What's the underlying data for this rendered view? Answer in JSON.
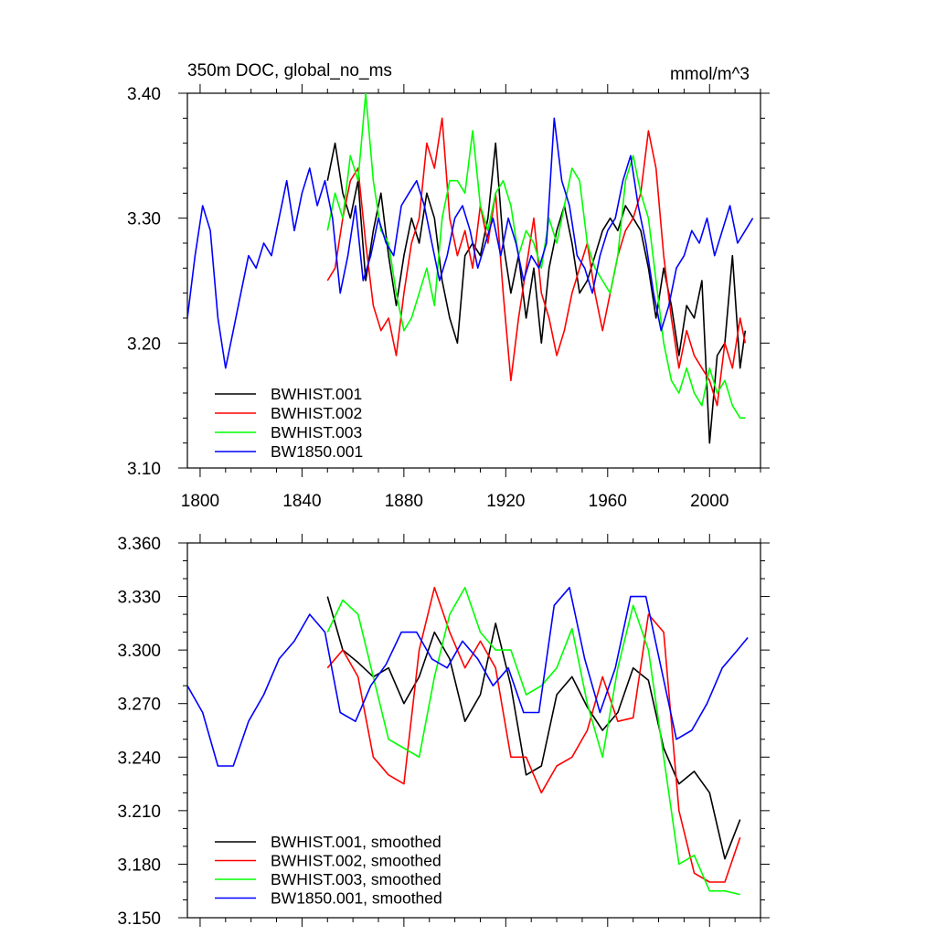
{
  "chart_data": [
    {
      "type": "line",
      "title": "350m DOC, global_no_ms",
      "units": "mmol/m^3",
      "xlim": [
        1795,
        2020
      ],
      "ylim": [
        3.1,
        3.4
      ],
      "xticks": [
        1800,
        1840,
        1880,
        1920,
        1960,
        2000
      ],
      "xtick_labels": [
        "1800",
        "1840",
        "1880",
        "1920",
        "1960",
        "2000"
      ],
      "yticks": [
        3.1,
        3.2,
        3.3,
        3.4
      ],
      "ytick_labels": [
        "3.10",
        "3.20",
        "3.30",
        "3.40"
      ],
      "legend_position": "bottom-left",
      "series": [
        {
          "name": "BWHIST.001",
          "color": "#000000",
          "x": [
            1850,
            1853,
            1856,
            1859,
            1862,
            1865,
            1868,
            1871,
            1874,
            1877,
            1880,
            1883,
            1886,
            1889,
            1892,
            1895,
            1898,
            1901,
            1904,
            1907,
            1910,
            1913,
            1916,
            1919,
            1922,
            1925,
            1928,
            1931,
            1934,
            1937,
            1940,
            1943,
            1946,
            1949,
            1952,
            1955,
            1958,
            1961,
            1964,
            1967,
            1970,
            1973,
            1976,
            1979,
            1982,
            1985,
            1988,
            1991,
            1994,
            1997,
            2000,
            2003,
            2006,
            2009,
            2012,
            2014
          ],
          "values": [
            3.33,
            3.36,
            3.32,
            3.3,
            3.33,
            3.25,
            3.29,
            3.32,
            3.27,
            3.23,
            3.27,
            3.3,
            3.28,
            3.32,
            3.3,
            3.25,
            3.22,
            3.2,
            3.27,
            3.28,
            3.27,
            3.3,
            3.36,
            3.28,
            3.24,
            3.27,
            3.22,
            3.26,
            3.2,
            3.26,
            3.29,
            3.31,
            3.28,
            3.24,
            3.25,
            3.27,
            3.29,
            3.3,
            3.29,
            3.31,
            3.3,
            3.29,
            3.26,
            3.22,
            3.26,
            3.23,
            3.19,
            3.23,
            3.22,
            3.25,
            3.12,
            3.19,
            3.2,
            3.27,
            3.18,
            3.21
          ]
        },
        {
          "name": "BWHIST.002",
          "color": "#ff0000",
          "x": [
            1850,
            1853,
            1856,
            1859,
            1862,
            1865,
            1868,
            1871,
            1874,
            1877,
            1880,
            1883,
            1886,
            1889,
            1892,
            1895,
            1898,
            1901,
            1904,
            1907,
            1910,
            1913,
            1916,
            1919,
            1922,
            1925,
            1928,
            1931,
            1934,
            1937,
            1940,
            1943,
            1946,
            1949,
            1952,
            1955,
            1958,
            1961,
            1964,
            1967,
            1970,
            1973,
            1976,
            1979,
            1982,
            1985,
            1988,
            1991,
            1994,
            1997,
            2000,
            2003,
            2006,
            2009,
            2012,
            2014
          ],
          "values": [
            3.25,
            3.26,
            3.3,
            3.33,
            3.34,
            3.28,
            3.23,
            3.21,
            3.22,
            3.19,
            3.24,
            3.28,
            3.3,
            3.36,
            3.34,
            3.38,
            3.3,
            3.27,
            3.29,
            3.26,
            3.31,
            3.28,
            3.32,
            3.24,
            3.17,
            3.22,
            3.26,
            3.3,
            3.24,
            3.22,
            3.19,
            3.21,
            3.24,
            3.26,
            3.28,
            3.24,
            3.21,
            3.24,
            3.27,
            3.29,
            3.3,
            3.32,
            3.37,
            3.34,
            3.27,
            3.22,
            3.18,
            3.21,
            3.19,
            3.18,
            3.17,
            3.15,
            3.2,
            3.18,
            3.22,
            3.2
          ]
        },
        {
          "name": "BWHIST.003",
          "color": "#00ff00",
          "x": [
            1850,
            1853,
            1856,
            1859,
            1862,
            1865,
            1868,
            1871,
            1874,
            1877,
            1880,
            1883,
            1886,
            1889,
            1892,
            1895,
            1898,
            1901,
            1904,
            1907,
            1910,
            1913,
            1916,
            1919,
            1922,
            1925,
            1928,
            1931,
            1934,
            1937,
            1940,
            1943,
            1946,
            1949,
            1952,
            1955,
            1958,
            1961,
            1964,
            1967,
            1970,
            1973,
            1976,
            1979,
            1982,
            1985,
            1988,
            1991,
            1994,
            1997,
            2000,
            2003,
            2006,
            2009,
            2012,
            2014
          ],
          "values": [
            3.29,
            3.32,
            3.3,
            3.35,
            3.33,
            3.4,
            3.33,
            3.29,
            3.28,
            3.24,
            3.21,
            3.22,
            3.24,
            3.26,
            3.23,
            3.3,
            3.33,
            3.33,
            3.32,
            3.37,
            3.31,
            3.29,
            3.32,
            3.33,
            3.31,
            3.27,
            3.29,
            3.28,
            3.26,
            3.3,
            3.28,
            3.31,
            3.34,
            3.33,
            3.28,
            3.26,
            3.25,
            3.24,
            3.27,
            3.33,
            3.35,
            3.32,
            3.3,
            3.25,
            3.2,
            3.17,
            3.16,
            3.18,
            3.16,
            3.15,
            3.18,
            3.16,
            3.17,
            3.15,
            3.14,
            3.14
          ]
        },
        {
          "name": "BW1850.001",
          "color": "#0000ff",
          "x": [
            1795,
            1798,
            1801,
            1804,
            1807,
            1810,
            1813,
            1816,
            1819,
            1822,
            1825,
            1828,
            1831,
            1834,
            1837,
            1840,
            1843,
            1846,
            1849,
            1852,
            1855,
            1858,
            1861,
            1864,
            1867,
            1870,
            1873,
            1876,
            1879,
            1882,
            1885,
            1888,
            1891,
            1894,
            1897,
            1900,
            1903,
            1906,
            1909,
            1912,
            1915,
            1918,
            1921,
            1924,
            1927,
            1930,
            1933,
            1936,
            1939,
            1942,
            1945,
            1948,
            1951,
            1954,
            1957,
            1960,
            1963,
            1966,
            1969,
            1972,
            1975,
            1978,
            1981,
            1984,
            1987,
            1990,
            1993,
            1996,
            1999,
            2002,
            2005,
            2008,
            2011,
            2014,
            2017
          ],
          "values": [
            3.22,
            3.27,
            3.31,
            3.29,
            3.22,
            3.18,
            3.21,
            3.24,
            3.27,
            3.26,
            3.28,
            3.27,
            3.3,
            3.33,
            3.29,
            3.32,
            3.34,
            3.31,
            3.33,
            3.3,
            3.24,
            3.27,
            3.31,
            3.25,
            3.27,
            3.3,
            3.28,
            3.27,
            3.31,
            3.32,
            3.33,
            3.31,
            3.28,
            3.25,
            3.27,
            3.3,
            3.31,
            3.29,
            3.26,
            3.28,
            3.3,
            3.27,
            3.3,
            3.28,
            3.25,
            3.27,
            3.26,
            3.28,
            3.38,
            3.33,
            3.31,
            3.27,
            3.26,
            3.24,
            3.27,
            3.29,
            3.3,
            3.33,
            3.35,
            3.31,
            3.28,
            3.24,
            3.21,
            3.23,
            3.26,
            3.27,
            3.29,
            3.28,
            3.3,
            3.27,
            3.29,
            3.31,
            3.28,
            3.29,
            3.3
          ]
        }
      ]
    },
    {
      "type": "line",
      "xlim": [
        1795,
        2020
      ],
      "ylim": [
        3.15,
        3.36
      ],
      "xticks": [
        1800,
        1840,
        1880,
        1920,
        1960,
        2000
      ],
      "yticks": [
        3.15,
        3.18,
        3.21,
        3.24,
        3.27,
        3.3,
        3.33,
        3.36
      ],
      "ytick_labels": [
        "3.150",
        "3.180",
        "3.210",
        "3.240",
        "3.270",
        "3.300",
        "3.330",
        "3.360"
      ],
      "legend_position": "bottom-left",
      "series": [
        {
          "name": "BWHIST.001, smoothed",
          "color": "#000000",
          "x": [
            1850,
            1856,
            1862,
            1868,
            1874,
            1880,
            1886,
            1892,
            1898,
            1904,
            1910,
            1916,
            1922,
            1928,
            1934,
            1940,
            1946,
            1952,
            1958,
            1964,
            1970,
            1976,
            1982,
            1988,
            1994,
            2000,
            2006,
            2012
          ],
          "values": [
            3.33,
            3.3,
            3.293,
            3.285,
            3.29,
            3.27,
            3.285,
            3.31,
            3.295,
            3.26,
            3.275,
            3.315,
            3.28,
            3.23,
            3.235,
            3.275,
            3.285,
            3.268,
            3.255,
            3.265,
            3.29,
            3.283,
            3.245,
            3.225,
            3.232,
            3.22,
            3.183,
            3.205
          ]
        },
        {
          "name": "BWHIST.002, smoothed",
          "color": "#ff0000",
          "x": [
            1850,
            1856,
            1862,
            1868,
            1874,
            1880,
            1886,
            1892,
            1898,
            1904,
            1910,
            1916,
            1922,
            1928,
            1934,
            1940,
            1946,
            1952,
            1958,
            1964,
            1970,
            1976,
            1982,
            1988,
            1994,
            2000,
            2006,
            2012
          ],
          "values": [
            3.29,
            3.3,
            3.285,
            3.24,
            3.23,
            3.225,
            3.3,
            3.335,
            3.31,
            3.29,
            3.305,
            3.29,
            3.24,
            3.24,
            3.22,
            3.235,
            3.24,
            3.255,
            3.285,
            3.26,
            3.262,
            3.32,
            3.31,
            3.21,
            3.175,
            3.17,
            3.17,
            3.195
          ]
        },
        {
          "name": "BWHIST.003, smoothed",
          "color": "#00ff00",
          "x": [
            1850,
            1856,
            1862,
            1868,
            1874,
            1880,
            1886,
            1892,
            1898,
            1904,
            1910,
            1916,
            1922,
            1928,
            1934,
            1940,
            1946,
            1952,
            1958,
            1964,
            1970,
            1976,
            1982,
            1988,
            1994,
            2000,
            2006,
            2012
          ],
          "values": [
            3.31,
            3.328,
            3.32,
            3.285,
            3.25,
            3.245,
            3.24,
            3.285,
            3.32,
            3.335,
            3.31,
            3.3,
            3.3,
            3.275,
            3.28,
            3.29,
            3.312,
            3.27,
            3.24,
            3.29,
            3.325,
            3.3,
            3.24,
            3.18,
            3.185,
            3.165,
            3.165,
            3.163
          ]
        },
        {
          "name": "BW1850.001, smoothed",
          "color": "#0000ff",
          "x": [
            1795,
            1801,
            1807,
            1813,
            1819,
            1825,
            1831,
            1837,
            1843,
            1849,
            1855,
            1861,
            1867,
            1873,
            1879,
            1885,
            1891,
            1897,
            1903,
            1909,
            1915,
            1921,
            1927,
            1933,
            1939,
            1945,
            1951,
            1957,
            1963,
            1969,
            1975,
            1981,
            1987,
            1993,
            1999,
            2005,
            2011,
            2015
          ],
          "values": [
            3.28,
            3.265,
            3.235,
            3.235,
            3.26,
            3.275,
            3.295,
            3.305,
            3.32,
            3.31,
            3.265,
            3.26,
            3.28,
            3.292,
            3.31,
            3.31,
            3.295,
            3.29,
            3.305,
            3.295,
            3.28,
            3.29,
            3.265,
            3.265,
            3.325,
            3.335,
            3.295,
            3.265,
            3.29,
            3.33,
            3.33,
            3.29,
            3.25,
            3.255,
            3.27,
            3.29,
            3.3,
            3.307
          ]
        }
      ]
    }
  ]
}
